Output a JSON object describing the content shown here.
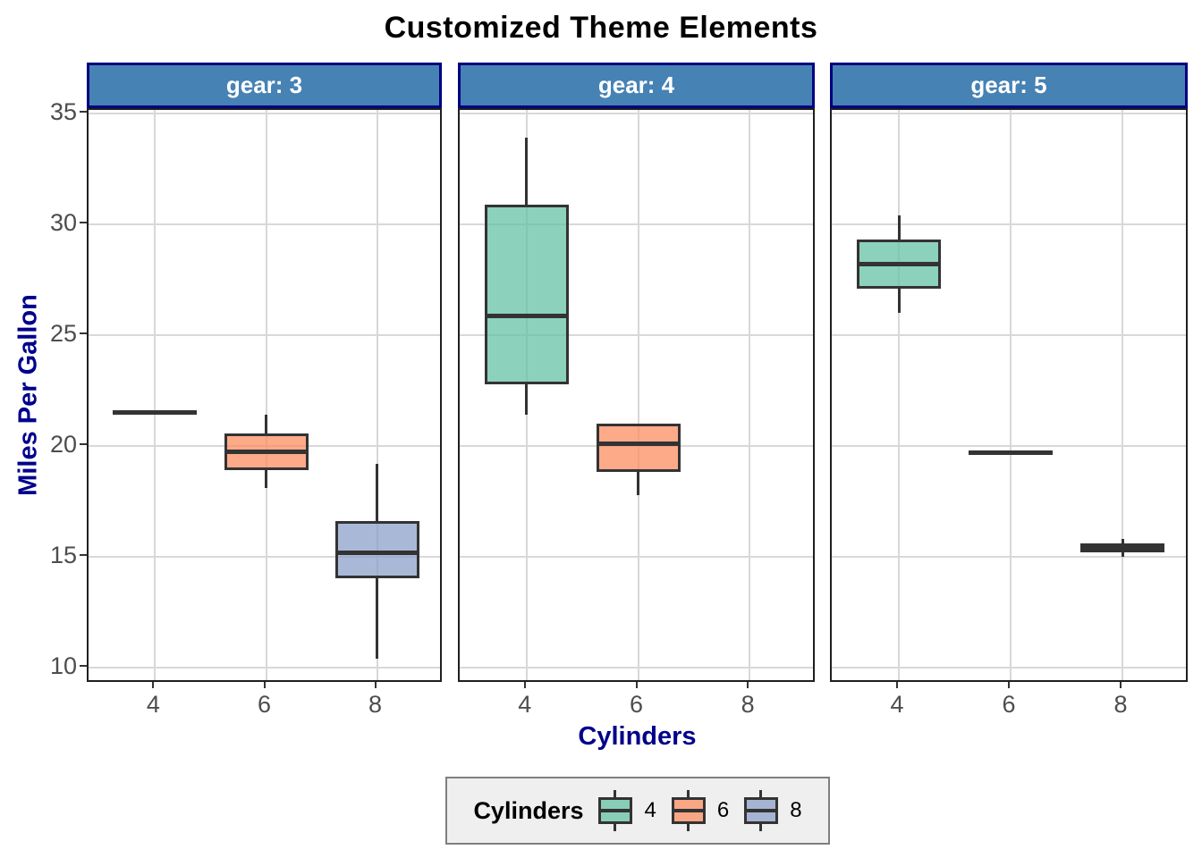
{
  "title": "Customized Theme Elements",
  "axes": {
    "x_title": "Cylinders",
    "y_title": "Miles Per Gallon",
    "y_ticks": [
      10,
      15,
      20,
      25,
      30,
      35
    ],
    "x_categories": [
      "4",
      "6",
      "8"
    ]
  },
  "legend": {
    "title": "Cylinders",
    "items": [
      {
        "label": "4",
        "color": "#66C2A5"
      },
      {
        "label": "6",
        "color": "#FC8D62"
      },
      {
        "label": "8",
        "color": "#8DA0CB"
      }
    ]
  },
  "colors": {
    "strip_fill": "#4682B4",
    "strip_border": "#000080",
    "axis_title": "#00008B",
    "tick_label": "#4D4D4D",
    "box_stroke": "#333333",
    "gridline": "#D8D8D8",
    "legend_bg": "#EFEFEF",
    "legend_border": "#7F7F7F",
    "fill_alpha": 0.75
  },
  "chart_data": {
    "type": "boxplot",
    "title": "Customized Theme Elements",
    "xlabel": "Cylinders",
    "ylabel": "Miles Per Gallon",
    "ylim": [
      9.3,
      35.1
    ],
    "grid": true,
    "legend_position": "bottom",
    "x_categories": [
      "4",
      "6",
      "8"
    ],
    "facets": [
      {
        "label": "gear: 3",
        "boxes": [
          {
            "cyl": "4",
            "color": "#66C2A5",
            "single": 21.5
          },
          {
            "cyl": "6",
            "color": "#FC8D62",
            "min": 18.1,
            "q1": 18.925,
            "median": 19.75,
            "q3": 20.575,
            "max": 21.4
          },
          {
            "cyl": "8",
            "color": "#8DA0CB",
            "min": 10.4,
            "q1": 14.05,
            "median": 15.2,
            "q3": 16.625,
            "max": 19.2
          }
        ]
      },
      {
        "label": "gear: 4",
        "boxes": [
          {
            "cyl": "4",
            "color": "#66C2A5",
            "min": 21.4,
            "q1": 22.8,
            "median": 25.85,
            "q3": 30.9,
            "max": 33.9
          },
          {
            "cyl": "6",
            "color": "#FC8D62",
            "min": 17.8,
            "q1": 18.85,
            "median": 20.1,
            "q3": 21.0,
            "max": 21.0
          }
        ]
      },
      {
        "label": "gear: 5",
        "boxes": [
          {
            "cyl": "4",
            "color": "#66C2A5",
            "min": 26.0,
            "q1": 27.1,
            "median": 28.2,
            "q3": 29.3,
            "max": 30.4
          },
          {
            "cyl": "6",
            "color": "#FC8D62",
            "single": 19.7
          },
          {
            "cyl": "8",
            "color": "#8DA0CB",
            "min": 15.0,
            "q1": 15.2,
            "median": 15.4,
            "q3": 15.6,
            "max": 15.8
          }
        ]
      }
    ]
  }
}
